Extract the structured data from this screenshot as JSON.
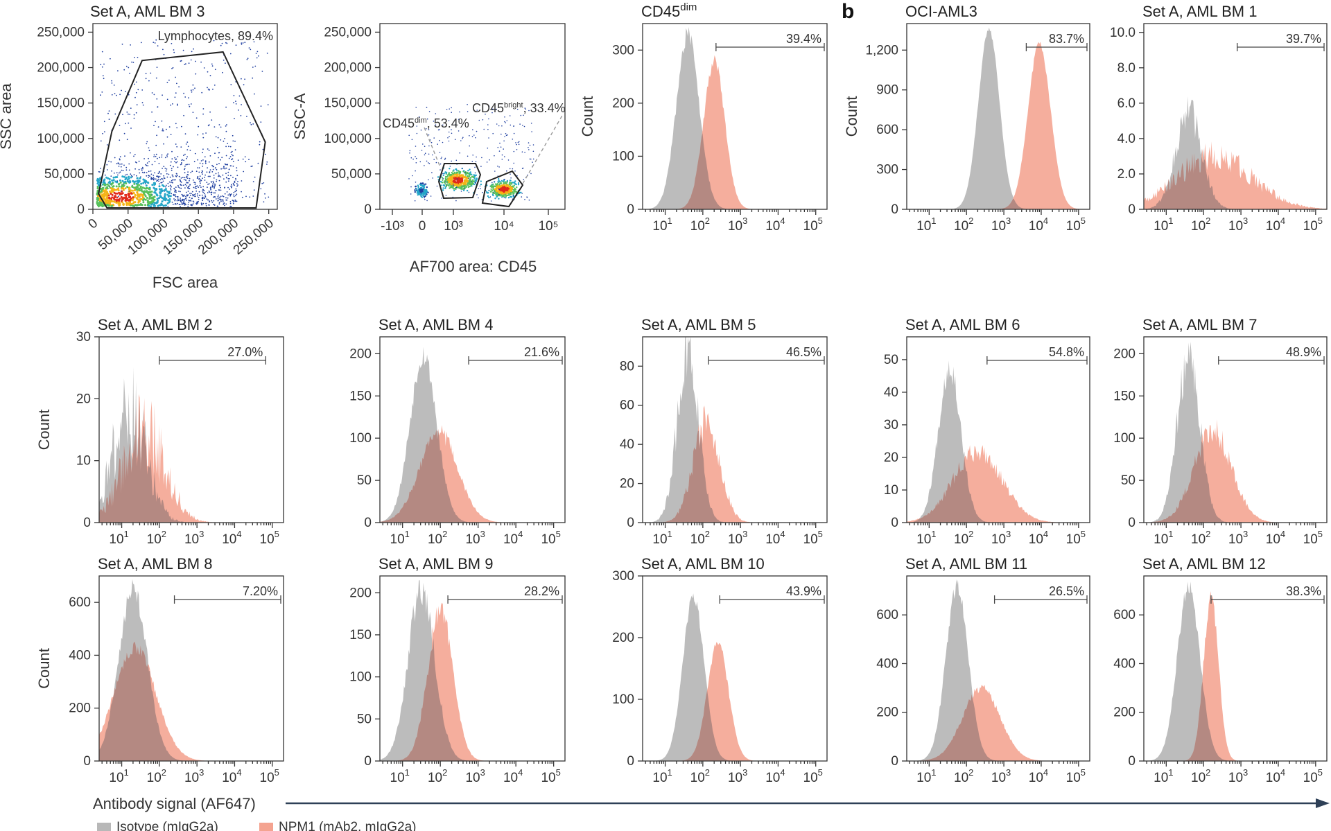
{
  "figure": {
    "panel_b_label": "b",
    "bottom_axis_label": "Antibody signal (AF647)",
    "legend": [
      {
        "label": "Isotype (mIgG2a)",
        "color": "#b8b8b8"
      },
      {
        "label": "NPM1 (mAb2, mIgG2a)",
        "color": "#f4a390"
      }
    ],
    "colors": {
      "isotype": "#b8b8b8",
      "npm1": "#f4a390",
      "overlap": "#a9847f",
      "axis": "#333333",
      "arrow": "#2e4057"
    }
  },
  "chart_data": [
    {
      "id": "scatter-fsc-ssc",
      "type": "scatter",
      "title": "Set A, AML BM 3",
      "xlabel": "FSC area",
      "ylabel": "SSC area",
      "xlim": [
        0,
        262144
      ],
      "ylim": [
        0,
        262144
      ],
      "xticks": [
        "0",
        "50,000",
        "100,000",
        "150,000",
        "200,000",
        "250,000"
      ],
      "yticks": [
        "0",
        "50,000",
        "100,000",
        "150,000",
        "200,000",
        "250,000"
      ],
      "gate": {
        "name": "Lymphocytes",
        "percent": "89.4%",
        "label": "Lymphocytes, 89.4%",
        "polygon": [
          [
            8000,
            22000
          ],
          [
            27000,
            110000
          ],
          [
            70000,
            210000
          ],
          [
            185000,
            222000
          ],
          [
            245000,
            95000
          ],
          [
            232000,
            2000
          ],
          [
            20000,
            2000
          ]
        ]
      },
      "density_clusters": [
        {
          "x": 40000,
          "y": 20000,
          "spread": [
            60000,
            18000
          ]
        }
      ]
    },
    {
      "id": "scatter-cd45-ssc",
      "type": "scatter",
      "title": "",
      "xlabel": "AF700 area: CD45",
      "ylabel": "SSC-A",
      "ylim": [
        0,
        262144
      ],
      "xticks": [
        "-10³",
        "0",
        "10³",
        "10⁴",
        "10⁵"
      ],
      "yticks": [
        "0",
        "50,000",
        "100,000",
        "150,000",
        "200,000",
        "250,000"
      ],
      "gates": [
        {
          "name": "CD45dim",
          "base": "CD45",
          "sup": "dim",
          "percent": ", 53.4%"
        },
        {
          "name": "CD45bright",
          "base": "CD45",
          "sup": "bright",
          "percent": ", 33.4%"
        }
      ]
    },
    {
      "id": "hist-cd45dim",
      "type": "histogram",
      "title": "CD45",
      "title_sup": "dim",
      "ylabel": "Count",
      "ylim": [
        0,
        350
      ],
      "yticks": [
        "0",
        "100",
        "200",
        "300"
      ],
      "ytick_values": [
        0,
        100,
        200,
        300
      ],
      "gate_percent": "39.4%",
      "gate_range": [
        2.35,
        5.3
      ],
      "isotype": {
        "peak_x": 1.6,
        "peak_count": 330,
        "width": 0.3,
        "noise": 0.05
      },
      "npm1": {
        "peak_x": 2.3,
        "peak_count": 280,
        "width": 0.28,
        "noise": 0.05
      }
    },
    {
      "id": "hist-oci-aml3",
      "type": "histogram",
      "title": "OCI-AML3",
      "ylabel": "Count",
      "ylim": [
        0,
        1400
      ],
      "yticks": [
        "0",
        "300",
        "600",
        "900",
        "1,200"
      ],
      "ytick_values": [
        0,
        300,
        600,
        900,
        1200
      ],
      "gate_percent": "83.7%",
      "gate_range": [
        3.6,
        5.3
      ],
      "isotype": {
        "peak_x": 2.6,
        "peak_count": 1360,
        "width": 0.28,
        "noise": 0.02
      },
      "npm1": {
        "peak_x": 3.95,
        "peak_count": 1250,
        "width": 0.3,
        "noise": 0.02
      }
    },
    {
      "id": "hist-bm1",
      "type": "histogram",
      "title": "Set A, AML BM 1",
      "ylim": [
        0,
        10.5
      ],
      "yticks": [
        "0",
        "2.0",
        "4.0",
        "6.0",
        "8.0",
        "10.0"
      ],
      "ytick_values": [
        0,
        2,
        4,
        6,
        8,
        10
      ],
      "gate_percent": "39.7%",
      "gate_range": [
        2.9,
        5.3
      ],
      "isotype": {
        "peak_x": 1.6,
        "peak_count": 5.5,
        "width": 0.35,
        "noise": 0.2
      },
      "npm1": {
        "peak_x": 2.3,
        "peak_count": 3.0,
        "width": 1.0,
        "noise": 0.3
      }
    },
    {
      "id": "hist-bm2",
      "type": "histogram",
      "title": "Set A, AML BM 2",
      "ylabel": "Count",
      "ylim": [
        0,
        30
      ],
      "yticks": [
        "0",
        "10",
        "20",
        "30"
      ],
      "ytick_values": [
        0,
        10,
        20,
        30
      ],
      "gate_percent": "27.0%",
      "gate_range": [
        2.0,
        4.9
      ],
      "isotype": {
        "peak_x": 1.2,
        "peak_count": 18,
        "width": 0.45,
        "noise": 0.45
      },
      "npm1": {
        "peak_x": 1.6,
        "peak_count": 15,
        "width": 0.55,
        "noise": 0.45
      }
    },
    {
      "id": "hist-bm4",
      "type": "histogram",
      "title": "Set A, AML BM 4",
      "ylim": [
        0,
        220
      ],
      "yticks": [
        "0",
        "50",
        "100",
        "150",
        "200"
      ],
      "ytick_values": [
        0,
        50,
        100,
        150,
        200
      ],
      "gate_percent": "21.6%",
      "gate_range": [
        2.75,
        5.3
      ],
      "isotype": {
        "peak_x": 1.55,
        "peak_count": 200,
        "width": 0.35,
        "noise": 0.08
      },
      "npm1": {
        "peak_x": 1.95,
        "peak_count": 108,
        "width": 0.5,
        "noise": 0.1
      }
    },
    {
      "id": "hist-bm5",
      "type": "histogram",
      "title": "Set A, AML BM 5",
      "ylim": [
        0,
        95
      ],
      "yticks": [
        "0",
        "20",
        "40",
        "60",
        "80"
      ],
      "ytick_values": [
        0,
        20,
        40,
        60,
        80
      ],
      "gate_percent": "46.5%",
      "gate_range": [
        2.15,
        5.3
      ],
      "isotype": {
        "peak_x": 1.6,
        "peak_count": 86,
        "width": 0.28,
        "noise": 0.2
      },
      "npm1": {
        "peak_x": 2.1,
        "peak_count": 52,
        "width": 0.35,
        "noise": 0.2
      }
    },
    {
      "id": "hist-bm6",
      "type": "histogram",
      "title": "Set A, AML BM 6",
      "ylim": [
        0,
        57
      ],
      "yticks": [
        "0",
        "10",
        "20",
        "30",
        "40",
        "50"
      ],
      "ytick_values": [
        0,
        10,
        20,
        30,
        40,
        50
      ],
      "gate_percent": "54.8%",
      "gate_range": [
        2.55,
        5.3
      ],
      "isotype": {
        "peak_x": 1.55,
        "peak_count": 48,
        "width": 0.3,
        "noise": 0.1
      },
      "npm1": {
        "peak_x": 2.3,
        "peak_count": 22,
        "width": 0.65,
        "noise": 0.15
      }
    },
    {
      "id": "hist-bm7",
      "type": "histogram",
      "title": "Set A, AML BM 7",
      "ylim": [
        0,
        220
      ],
      "yticks": [
        "0",
        "50",
        "100",
        "150",
        "200"
      ],
      "ytick_values": [
        0,
        50,
        100,
        150,
        200
      ],
      "gate_percent": "48.9%",
      "gate_range": [
        2.4,
        5.3
      ],
      "isotype": {
        "peak_x": 1.6,
        "peak_count": 200,
        "width": 0.3,
        "noise": 0.15
      },
      "npm1": {
        "peak_x": 2.25,
        "peak_count": 110,
        "width": 0.5,
        "noise": 0.15
      }
    },
    {
      "id": "hist-bm8",
      "type": "histogram",
      "title": "Set A, AML BM 8",
      "ylabel": "Count",
      "ylim": [
        0,
        700
      ],
      "yticks": [
        "0",
        "200",
        "400",
        "600"
      ],
      "ytick_values": [
        0,
        200,
        400,
        600
      ],
      "gate_percent": "7.20%",
      "gate_range": [
        2.4,
        5.3
      ],
      "isotype": {
        "peak_x": 1.3,
        "peak_count": 650,
        "width": 0.38,
        "noise": 0.06
      },
      "npm1": {
        "peak_x": 1.35,
        "peak_count": 430,
        "width": 0.55,
        "noise": 0.06
      }
    },
    {
      "id": "hist-bm9",
      "type": "histogram",
      "title": "Set A, AML BM 9",
      "ylim": [
        0,
        220
      ],
      "yticks": [
        "0",
        "50",
        "100",
        "150",
        "200"
      ],
      "ytick_values": [
        0,
        50,
        100,
        150,
        200
      ],
      "gate_percent": "28.2%",
      "gate_range": [
        2.2,
        5.3
      ],
      "isotype": {
        "peak_x": 1.5,
        "peak_count": 205,
        "width": 0.35,
        "noise": 0.1
      },
      "npm1": {
        "peak_x": 2.0,
        "peak_count": 180,
        "width": 0.33,
        "noise": 0.08
      }
    },
    {
      "id": "hist-bm10",
      "type": "histogram",
      "title": "Set A, AML BM 10",
      "ylim": [
        0,
        300
      ],
      "yticks": [
        "0",
        "100",
        "200",
        "300"
      ],
      "ytick_values": [
        0,
        100,
        200,
        300
      ],
      "gate_percent": "43.9%",
      "gate_range": [
        2.45,
        5.3
      ],
      "isotype": {
        "peak_x": 1.75,
        "peak_count": 268,
        "width": 0.28,
        "noise": 0.04
      },
      "npm1": {
        "peak_x": 2.4,
        "peak_count": 192,
        "width": 0.28,
        "noise": 0.04
      }
    },
    {
      "id": "hist-bm11",
      "type": "histogram",
      "title": "Set A, AML BM 11",
      "ylim": [
        0,
        760
      ],
      "yticks": [
        "0",
        "200",
        "400",
        "600"
      ],
      "ytick_values": [
        0,
        200,
        400,
        600
      ],
      "gate_percent": "26.5%",
      "gate_range": [
        2.75,
        5.3
      ],
      "isotype": {
        "peak_x": 1.75,
        "peak_count": 720,
        "width": 0.3,
        "noise": 0.05
      },
      "npm1": {
        "peak_x": 2.4,
        "peak_count": 300,
        "width": 0.5,
        "noise": 0.06
      }
    },
    {
      "id": "hist-bm12",
      "type": "histogram",
      "title": "Set A, AML BM 12",
      "ylim": [
        0,
        760
      ],
      "yticks": [
        "0",
        "200",
        "400",
        "600"
      ],
      "ytick_values": [
        0,
        200,
        400,
        600
      ],
      "gate_percent": "38.3%",
      "gate_range": [
        2.2,
        5.3
      ],
      "isotype": {
        "peak_x": 1.6,
        "peak_count": 720,
        "width": 0.3,
        "noise": 0.05
      },
      "npm1": {
        "peak_x": 2.2,
        "peak_count": 670,
        "width": 0.2,
        "noise": 0.05
      }
    }
  ],
  "hist_x": {
    "log_min": 0.4,
    "log_max": 5.3,
    "ticks": [
      {
        "base": "10",
        "exp": "1",
        "v": 1
      },
      {
        "base": "10",
        "exp": "2",
        "v": 2
      },
      {
        "base": "10",
        "exp": "3",
        "v": 3
      },
      {
        "base": "10",
        "exp": "4",
        "v": 4
      },
      {
        "base": "10",
        "exp": "5",
        "v": 5
      }
    ]
  }
}
